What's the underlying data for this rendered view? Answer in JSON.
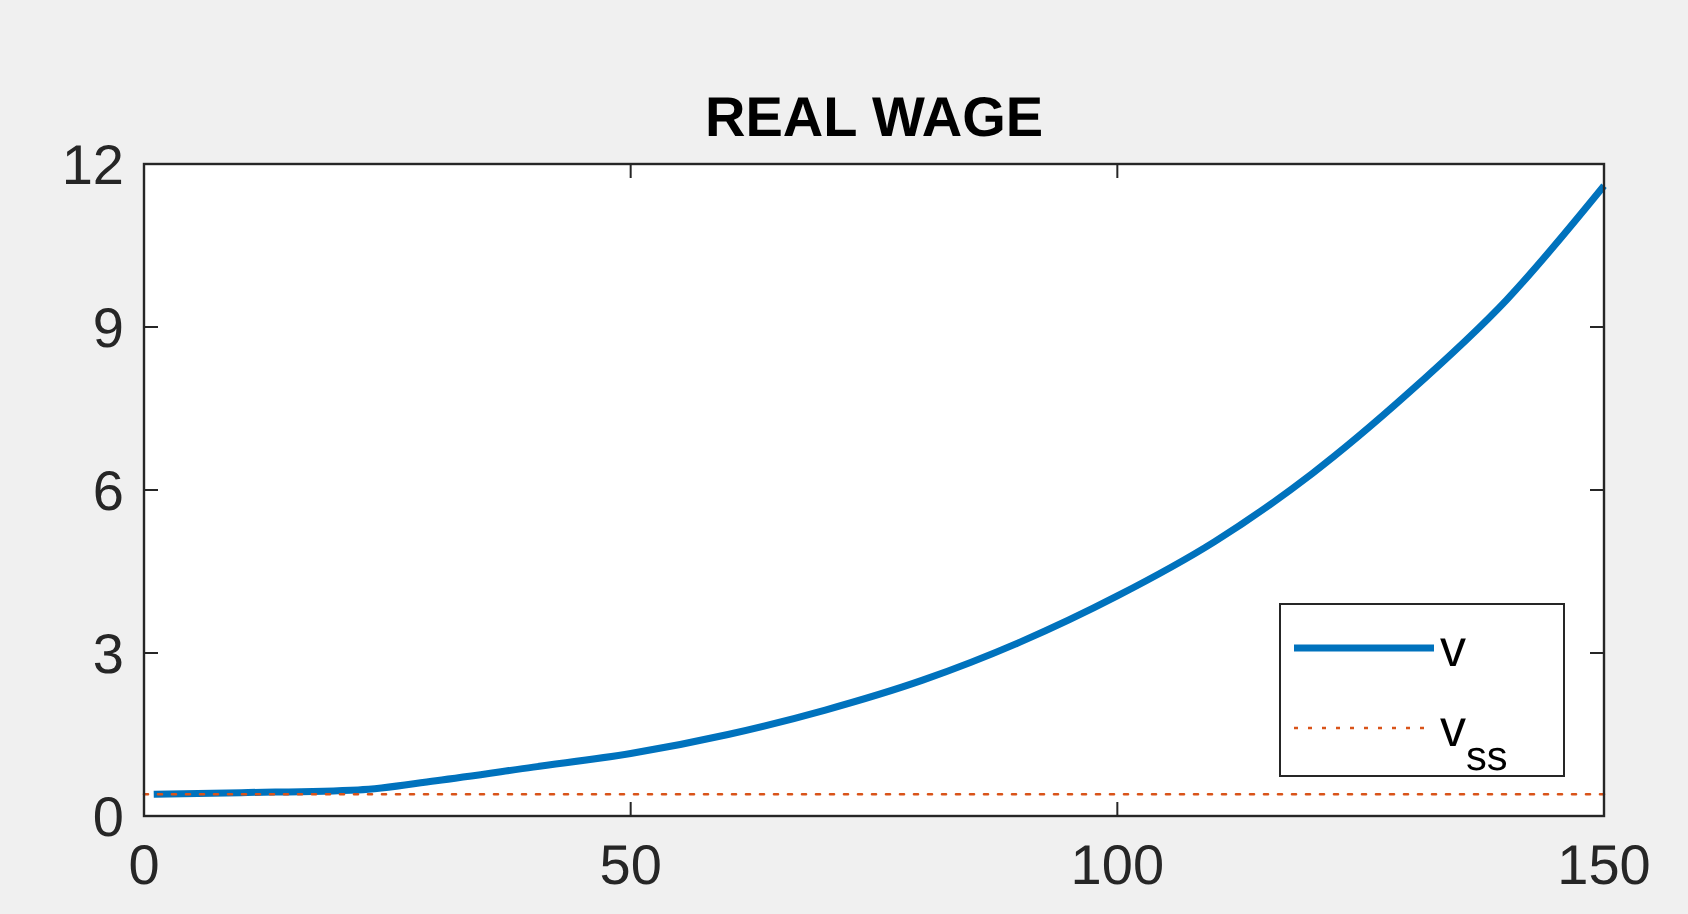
{
  "chart_data": {
    "type": "line",
    "title": "REAL WAGE",
    "xlim": [
      0,
      150
    ],
    "ylim": [
      0,
      12
    ],
    "xticks": [
      0,
      50,
      100,
      150
    ],
    "yticks": [
      0,
      3,
      6,
      9,
      12
    ],
    "grid": false,
    "legend": "bottom right",
    "series": [
      {
        "name": "v",
        "color": "#0072bd",
        "line_style": "solid",
        "x": [
          1,
          10,
          22,
          30,
          40,
          50,
          60,
          70,
          80,
          90,
          100,
          110,
          120,
          130,
          140,
          150
        ],
        "values": [
          0.4,
          0.43,
          0.48,
          0.65,
          0.9,
          1.15,
          1.5,
          1.95,
          2.5,
          3.2,
          4.05,
          5.05,
          6.3,
          7.8,
          9.5,
          11.6
        ]
      },
      {
        "name": "v$_{ss}$",
        "color": "#d95319",
        "line_style": "dotted",
        "x": [
          0,
          150
        ],
        "values": [
          0.4,
          0.4
        ]
      }
    ]
  }
}
